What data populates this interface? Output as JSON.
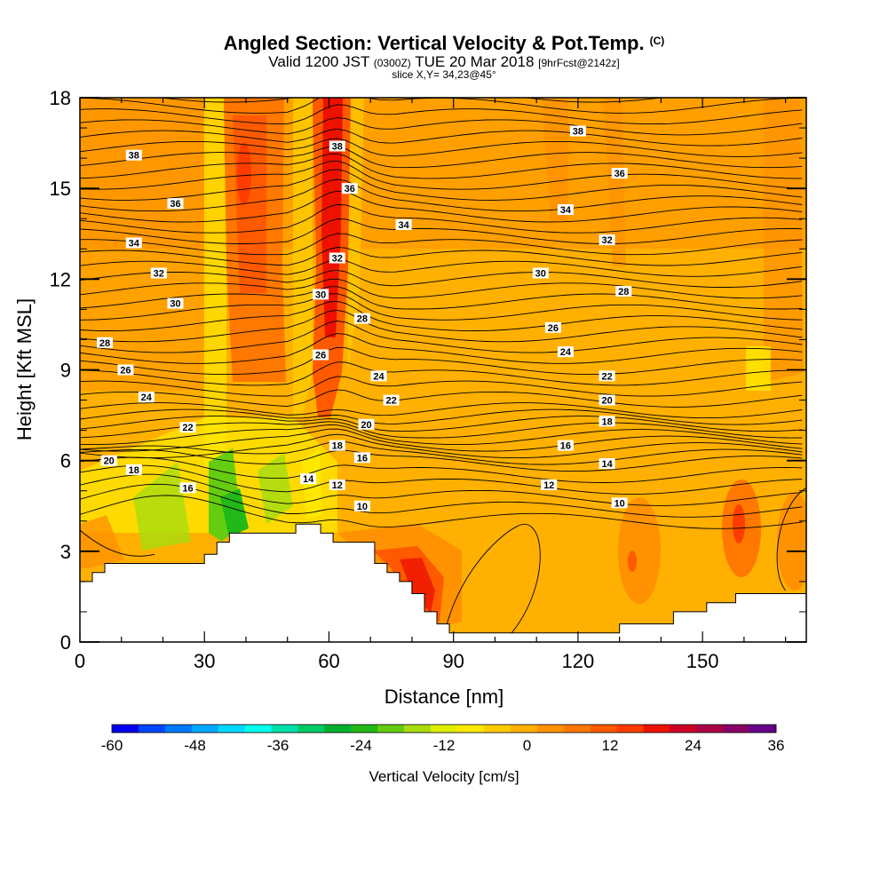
{
  "title": {
    "main": "Angled Section: Vertical Velocity & Pot.Temp.",
    "units": "(C)",
    "valid_prefix": "Valid 1200 JST",
    "valid_z": "(0300Z)",
    "valid_date": "TUE 20 Mar 2018",
    "fcst": "[9hrFcst@2142z]",
    "slice": "slice X,Y= 34,23@45°"
  },
  "chart_data": {
    "type": "heatmap",
    "xlabel": "Distance [nm]",
    "ylabel": "Height [Kft MSL]",
    "xlim": [
      0,
      175
    ],
    "ylim": [
      0,
      18
    ],
    "x_ticks": [
      0,
      30,
      60,
      90,
      120,
      150
    ],
    "y_ticks": [
      0,
      3,
      6,
      9,
      12,
      15,
      18
    ],
    "colorbar": {
      "title": "Vertical Velocity [cm/s]",
      "levels": [
        -60,
        -56,
        -52,
        -48,
        -44,
        -40,
        -36,
        -32,
        -28,
        -24,
        -20,
        -16,
        -12,
        -8,
        -4,
        0,
        4,
        8,
        12,
        16,
        20,
        24,
        28,
        32,
        36
      ],
      "tick_labels": [
        -60,
        -48,
        -36,
        -24,
        -12,
        0,
        12,
        24,
        36
      ],
      "colors": [
        "#0000ee",
        "#0044ff",
        "#0077ff",
        "#00a8ff",
        "#00d8ff",
        "#00ffee",
        "#00e0a8",
        "#00cc66",
        "#00b030",
        "#22b818",
        "#66cc10",
        "#a8dc10",
        "#e0ee00",
        "#ffe800",
        "#ffcc00",
        "#ffb000",
        "#ff9200",
        "#ff7800",
        "#ff5a00",
        "#ff3c00",
        "#ee1100",
        "#cc0022",
        "#aa0044",
        "#880066",
        "#660088"
      ]
    },
    "terrain": [
      [
        0,
        2
      ],
      [
        3,
        2
      ],
      [
        3,
        2.3
      ],
      [
        6,
        2.3
      ],
      [
        6,
        2.6
      ],
      [
        10,
        2.6
      ],
      [
        10,
        2.6
      ],
      [
        30,
        2.6
      ],
      [
        30,
        2.9
      ],
      [
        33,
        2.9
      ],
      [
        33,
        3.3
      ],
      [
        36,
        3.3
      ],
      [
        36,
        3.6
      ],
      [
        52,
        3.6
      ],
      [
        52,
        3.9
      ],
      [
        58,
        3.9
      ],
      [
        58,
        3.6
      ],
      [
        61,
        3.6
      ],
      [
        61,
        3.3
      ],
      [
        71,
        3.3
      ],
      [
        71,
        2.6
      ],
      [
        74,
        2.6
      ],
      [
        74,
        2.3
      ],
      [
        77,
        2.3
      ],
      [
        77,
        2.0
      ],
      [
        80,
        2.0
      ],
      [
        80,
        1.6
      ],
      [
        83,
        1.6
      ],
      [
        83,
        1.0
      ],
      [
        86,
        1.0
      ],
      [
        86,
        0.6
      ],
      [
        89,
        0.6
      ],
      [
        89,
        0.3
      ],
      [
        130,
        0.3
      ],
      [
        130,
        0.6
      ],
      [
        143,
        0.6
      ],
      [
        143,
        1.0
      ],
      [
        151,
        1.0
      ],
      [
        151,
        1.3
      ],
      [
        158,
        1.3
      ],
      [
        158,
        1.6
      ],
      [
        175,
        1.6
      ]
    ],
    "contour_labels": [
      {
        "text": "38",
        "x": 13,
        "y": 16.1
      },
      {
        "text": "36",
        "x": 23,
        "y": 14.5
      },
      {
        "text": "34",
        "x": 13,
        "y": 13.2
      },
      {
        "text": "32",
        "x": 19,
        "y": 12.2
      },
      {
        "text": "30",
        "x": 23,
        "y": 11.2
      },
      {
        "text": "28",
        "x": 6,
        "y": 9.9
      },
      {
        "text": "26",
        "x": 11,
        "y": 9.0
      },
      {
        "text": "24",
        "x": 16,
        "y": 8.1
      },
      {
        "text": "22",
        "x": 26,
        "y": 7.1
      },
      {
        "text": "20",
        "x": 7,
        "y": 6.0
      },
      {
        "text": "18",
        "x": 13,
        "y": 5.7
      },
      {
        "text": "16",
        "x": 26,
        "y": 5.1
      },
      {
        "text": "38",
        "x": 62,
        "y": 16.4
      },
      {
        "text": "36",
        "x": 65,
        "y": 15.0
      },
      {
        "text": "34",
        "x": 78,
        "y": 13.8
      },
      {
        "text": "32",
        "x": 62,
        "y": 12.7
      },
      {
        "text": "30",
        "x": 58,
        "y": 11.5
      },
      {
        "text": "28",
        "x": 68,
        "y": 10.7
      },
      {
        "text": "26",
        "x": 58,
        "y": 9.5
      },
      {
        "text": "24",
        "x": 72,
        "y": 8.8
      },
      {
        "text": "22",
        "x": 75,
        "y": 8.0
      },
      {
        "text": "20",
        "x": 69,
        "y": 7.2
      },
      {
        "text": "18",
        "x": 62,
        "y": 6.5
      },
      {
        "text": "16",
        "x": 68,
        "y": 6.1
      },
      {
        "text": "14",
        "x": 55,
        "y": 5.4
      },
      {
        "text": "12",
        "x": 62,
        "y": 5.2
      },
      {
        "text": "10",
        "x": 68,
        "y": 4.5
      },
      {
        "text": "38",
        "x": 120,
        "y": 16.9
      },
      {
        "text": "36",
        "x": 130,
        "y": 15.5
      },
      {
        "text": "34",
        "x": 117,
        "y": 14.3
      },
      {
        "text": "32",
        "x": 127,
        "y": 13.3
      },
      {
        "text": "30",
        "x": 111,
        "y": 12.2
      },
      {
        "text": "28",
        "x": 131,
        "y": 11.6
      },
      {
        "text": "26",
        "x": 114,
        "y": 10.4
      },
      {
        "text": "24",
        "x": 117,
        "y": 9.6
      },
      {
        "text": "22",
        "x": 127,
        "y": 8.8
      },
      {
        "text": "20",
        "x": 127,
        "y": 8.0
      },
      {
        "text": "18",
        "x": 127,
        "y": 7.3
      },
      {
        "text": "16",
        "x": 117,
        "y": 6.5
      },
      {
        "text": "14",
        "x": 127,
        "y": 5.9
      },
      {
        "text": "12",
        "x": 113,
        "y": 5.2
      },
      {
        "text": "10",
        "x": 130,
        "y": 4.6
      }
    ]
  }
}
